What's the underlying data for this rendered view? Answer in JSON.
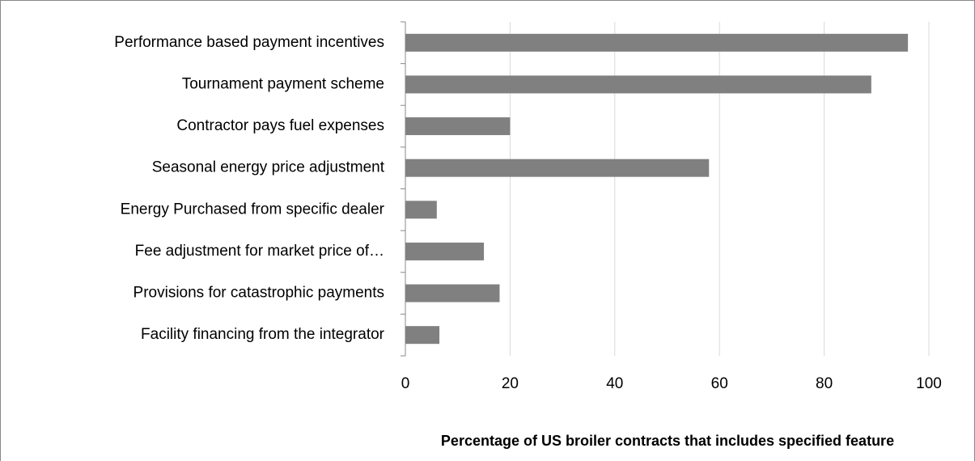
{
  "chart_data": {
    "type": "barh",
    "xlabel": "Percentage of US broiler contracts that includes specified feature",
    "categories": [
      "Performance based payment incentives",
      "Tournament payment scheme",
      "Contractor pays fuel expenses",
      "Seasonal energy price adjustment",
      "Energy Purchased from specific dealer",
      "Fee adjustment for market price of…",
      "Provisions for catastrophic payments",
      "Facility financing from the integrator"
    ],
    "values": [
      96,
      89,
      20,
      58,
      6,
      15,
      18,
      6.5
    ],
    "color": "#808080",
    "xlim": [
      0,
      100
    ],
    "xticks": [
      0,
      20,
      40,
      60,
      80,
      100
    ],
    "grid": true
  }
}
